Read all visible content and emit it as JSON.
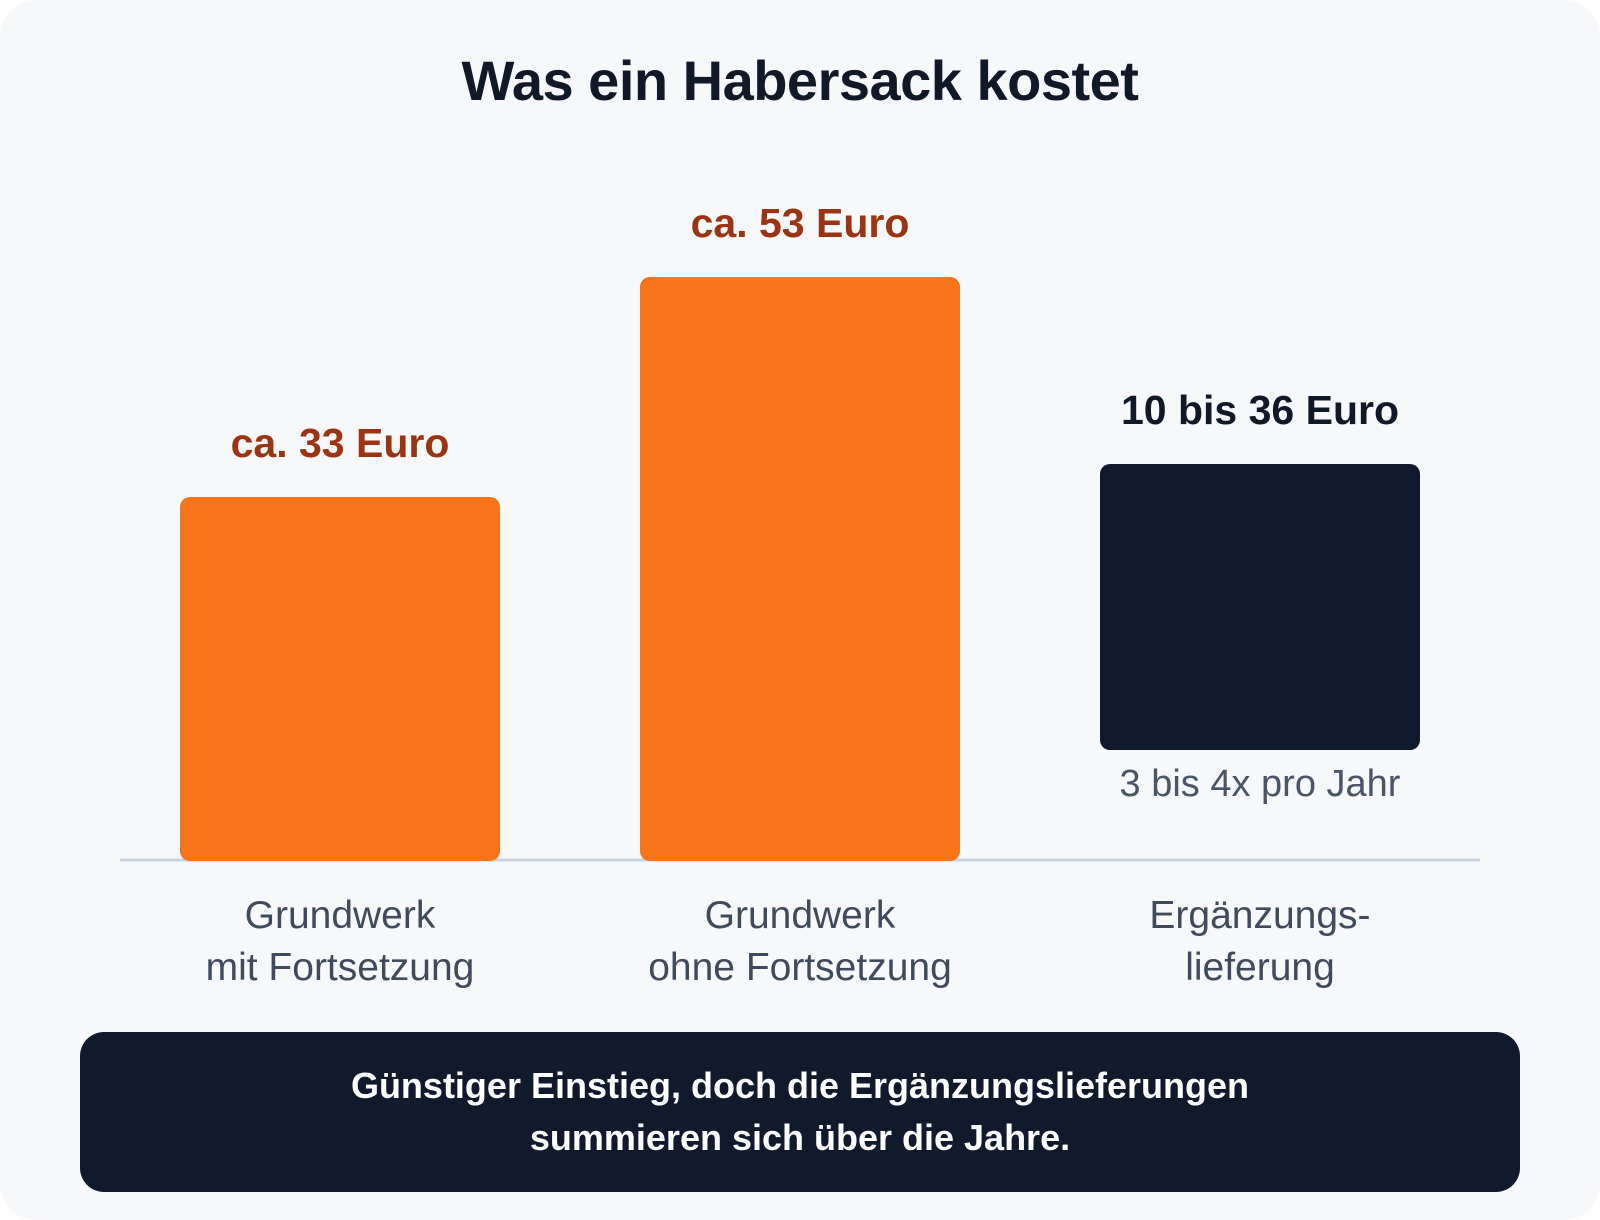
{
  "colors": {
    "background": "#f7f8fa",
    "orange_bar": "#f77419",
    "dark_bar": "#111a2c",
    "orange_label": "#9a3412",
    "dark_label": "#111827",
    "baseline": "#c9d3e0"
  },
  "chart_data": {
    "type": "bar",
    "title": "Was ein Habersack kostet",
    "xlabel": "",
    "ylabel": "",
    "ylim": [
      0,
      53
    ],
    "grid": false,
    "legend": "none",
    "categories": [
      "Grundwerk\nmit Fortsetzung",
      "Grundwerk\nohne Fortsetzung",
      "Ergänzungs-\nlieferung"
    ],
    "values": [
      33,
      53,
      [
        10,
        36
      ]
    ],
    "data_labels": [
      "ca. 33 Euro",
      "ca. 53 Euro",
      "10 bis 36 Euro"
    ],
    "bar_colors": [
      "#f77419",
      "#f77419",
      "#111a2c"
    ],
    "label_colors": [
      "#9a3412",
      "#9a3412",
      "#111827"
    ],
    "annotations": [
      {
        "category": "Ergänzungs-\nlieferung",
        "text": "3 bis 4x pro Jahr"
      }
    ]
  },
  "footer_note": "Günstiger Einstieg, doch die Ergänzungslieferungen\nsummieren sich über die Jahre."
}
